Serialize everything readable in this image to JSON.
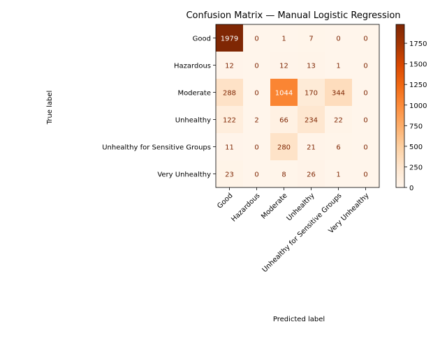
{
  "chart_data": {
    "type": "heatmap",
    "title": "Confusion Matrix — Manual Logistic Regression",
    "xlabel": "Predicted label",
    "ylabel": "True label",
    "x_categories": [
      "Good",
      "Hazardous",
      "Moderate",
      "Unhealthy",
      "Unhealthy for Sensitive Groups",
      "Very Unhealthy"
    ],
    "y_categories": [
      "Good",
      "Hazardous",
      "Moderate",
      "Unhealthy",
      "Unhealthy for Sensitive Groups",
      "Very Unhealthy"
    ],
    "values": [
      [
        1979,
        0,
        1,
        7,
        0,
        0
      ],
      [
        12,
        0,
        12,
        13,
        1,
        0
      ],
      [
        288,
        0,
        1044,
        170,
        344,
        0
      ],
      [
        122,
        2,
        66,
        234,
        22,
        0
      ],
      [
        11,
        0,
        280,
        21,
        6,
        0
      ],
      [
        23,
        0,
        8,
        26,
        1,
        0
      ]
    ],
    "colormap": "Oranges",
    "colorbar": {
      "min": 0,
      "max": 1979,
      "ticks": [
        0,
        250,
        500,
        750,
        1000,
        1250,
        1500,
        1750
      ]
    },
    "grid": false
  }
}
